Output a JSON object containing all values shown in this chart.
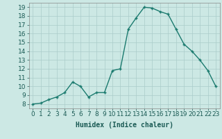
{
  "x": [
    0,
    1,
    2,
    3,
    4,
    5,
    6,
    7,
    8,
    9,
    10,
    11,
    12,
    13,
    14,
    15,
    16,
    17,
    18,
    19,
    20,
    21,
    22,
    23
  ],
  "y": [
    8.0,
    8.1,
    8.5,
    8.8,
    9.3,
    10.5,
    10.0,
    8.8,
    9.3,
    9.3,
    11.8,
    12.0,
    16.5,
    17.8,
    19.0,
    18.9,
    18.5,
    18.2,
    16.5,
    14.8,
    14.0,
    13.0,
    11.8,
    10.0
  ],
  "xlabel": "Humidex (Indice chaleur)",
  "ylim": [
    7.5,
    19.5
  ],
  "xlim": [
    -0.5,
    23.5
  ],
  "yticks": [
    8,
    9,
    10,
    11,
    12,
    13,
    14,
    15,
    16,
    17,
    18,
    19
  ],
  "xticks": [
    0,
    1,
    2,
    3,
    4,
    5,
    6,
    7,
    8,
    9,
    10,
    11,
    12,
    13,
    14,
    15,
    16,
    17,
    18,
    19,
    20,
    21,
    22,
    23
  ],
  "xtick_labels": [
    "0",
    "1",
    "2",
    "3",
    "4",
    "5",
    "6",
    "7",
    "8",
    "9",
    "10",
    "11",
    "12",
    "13",
    "14",
    "15",
    "16",
    "17",
    "18",
    "19",
    "20",
    "21",
    "22",
    "23"
  ],
  "line_color": "#1a7a6e",
  "marker": "+",
  "bg_color": "#cce8e4",
  "grid_color": "#aaccca",
  "xlabel_fontsize": 7,
  "tick_fontsize": 6.5
}
